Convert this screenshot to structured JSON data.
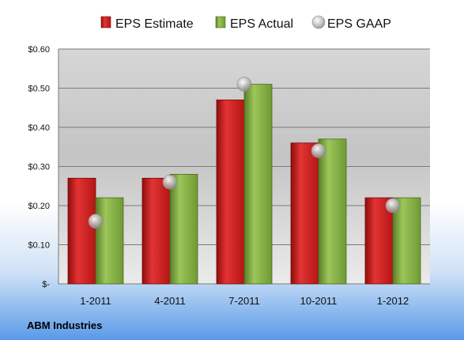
{
  "chart_data": {
    "type": "bar",
    "categories": [
      "1-2011",
      "4-2011",
      "7-2011",
      "10-2011",
      "1-2012"
    ],
    "series": [
      {
        "name": "EPS Estimate",
        "kind": "bar",
        "color": "#cc1f1f",
        "values": [
          0.27,
          0.27,
          0.47,
          0.36,
          0.22
        ]
      },
      {
        "name": "EPS Actual",
        "kind": "bar",
        "color": "#7aa63a",
        "values": [
          0.22,
          0.28,
          0.51,
          0.37,
          0.22
        ]
      },
      {
        "name": "EPS GAAP",
        "kind": "marker",
        "color": "#b8b8b8",
        "values": [
          0.16,
          0.26,
          0.51,
          0.34,
          0.2
        ]
      }
    ],
    "y_ticks": [
      {
        "value": 0,
        "label": "$-"
      },
      {
        "value": 0.1,
        "label": "$0.10"
      },
      {
        "value": 0.2,
        "label": "$0.20"
      },
      {
        "value": 0.3,
        "label": "$0.30"
      },
      {
        "value": 0.4,
        "label": "$0.40"
      },
      {
        "value": 0.5,
        "label": "$0.50"
      },
      {
        "value": 0.6,
        "label": "$0.60"
      }
    ],
    "ylim": [
      0,
      0.6
    ],
    "grid": true,
    "legend_position": "top",
    "footer": "ABM Industries"
  }
}
